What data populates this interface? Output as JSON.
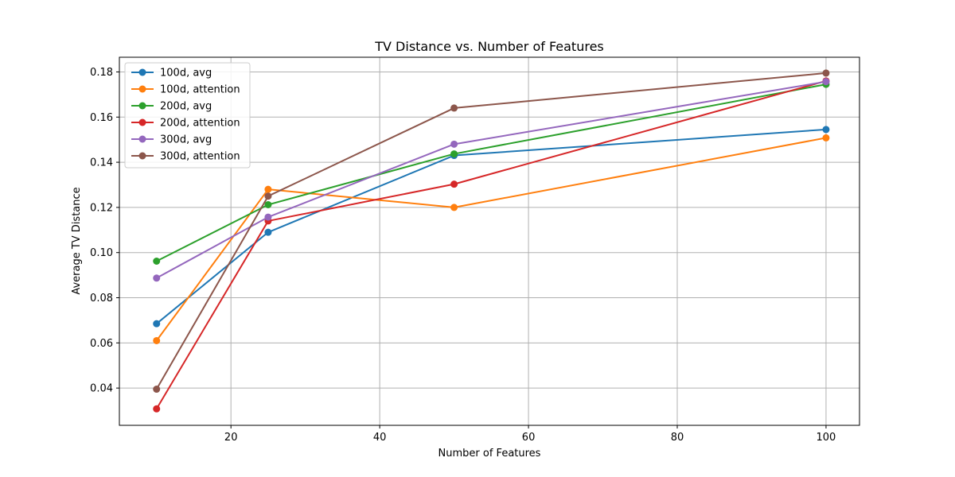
{
  "chart_data": {
    "type": "line",
    "title": "TV Distance vs. Number of Features",
    "xlabel": "Number of Features",
    "ylabel": "Average TV Distance",
    "x": [
      10,
      25,
      50,
      100
    ],
    "xlim": [
      5,
      104.5
    ],
    "ylim": [
      0.0235,
      0.1865
    ],
    "xticks": [
      20,
      40,
      60,
      80,
      100
    ],
    "yticks": [
      0.04,
      0.06,
      0.08,
      0.1,
      0.12,
      0.14,
      0.16,
      0.18
    ],
    "ytick_labels": [
      "0.04",
      "0.06",
      "0.08",
      "0.10",
      "0.12",
      "0.14",
      "0.16",
      "0.18"
    ],
    "xtick_labels": [
      "20",
      "40",
      "60",
      "80",
      "100"
    ],
    "grid": true,
    "legend_position": "top-left",
    "series": [
      {
        "name": "100d, avg",
        "color": "#1f77b4",
        "values": [
          0.0685,
          0.109,
          0.143,
          0.1545
        ]
      },
      {
        "name": "100d, attention",
        "color": "#ff7f0e",
        "values": [
          0.061,
          0.128,
          0.12,
          0.1508
        ]
      },
      {
        "name": "200d, avg",
        "color": "#2ca02c",
        "values": [
          0.0962,
          0.1212,
          0.1437,
          0.1745
        ]
      },
      {
        "name": "200d, attention",
        "color": "#d62728",
        "values": [
          0.0308,
          0.114,
          0.1303,
          0.176
        ]
      },
      {
        "name": "300d, avg",
        "color": "#9467bd",
        "values": [
          0.0887,
          0.1157,
          0.148,
          0.1757
        ]
      },
      {
        "name": "300d, attention",
        "color": "#8c564b",
        "values": [
          0.0395,
          0.125,
          0.164,
          0.1795
        ]
      }
    ]
  }
}
